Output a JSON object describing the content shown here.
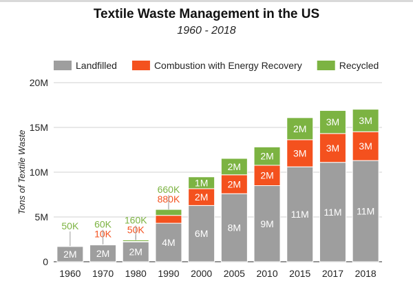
{
  "chart_data": {
    "type": "bar",
    "stacked": true,
    "title": "Textile Waste Management in the US",
    "subtitle": "1960 - 2018",
    "xlabel": "",
    "ylabel": "Tons of Textile Waste",
    "ylim": [
      0,
      20000000
    ],
    "yticks": [
      {
        "value": 0,
        "label": "0"
      },
      {
        "value": 5000000,
        "label": "5M"
      },
      {
        "value": 10000000,
        "label": "10M"
      },
      {
        "value": 15000000,
        "label": "15M"
      },
      {
        "value": 20000000,
        "label": "20M"
      }
    ],
    "grid": true,
    "legend_position": "top",
    "categories": [
      "1960",
      "1970",
      "1980",
      "1990",
      "2000",
      "2005",
      "2010",
      "2015",
      "2017",
      "2018"
    ],
    "series": [
      {
        "name": "Landfilled",
        "color": "#9e9e9e",
        "values": [
          1710000,
          1880000,
          2220000,
          4300000,
          6280000,
          7600000,
          8500000,
          10600000,
          11100000,
          11300000
        ],
        "labels": [
          "2M",
          "2M",
          "2M",
          "4M",
          "6M",
          "8M",
          "9M",
          "11M",
          "11M",
          "11M"
        ]
      },
      {
        "name": "Combustion with Energy Recovery",
        "color": "#f4511e",
        "values": [
          0,
          10000,
          50000,
          880000,
          1880000,
          2110000,
          2270000,
          3030000,
          3220000,
          3220000
        ],
        "labels": [
          "",
          "10K",
          "50K",
          "880K",
          "2M",
          "2M",
          "2M",
          "3M",
          "3M",
          "3M"
        ]
      },
      {
        "name": "Recycled",
        "color": "#7cb342",
        "values": [
          50000,
          60000,
          160000,
          660000,
          1320000,
          1830000,
          2050000,
          2460000,
          2570000,
          2510000
        ],
        "labels": [
          "50K",
          "60K",
          "160K",
          "660K",
          "1M",
          "2M",
          "2M",
          "2M",
          "3M",
          "3M"
        ]
      }
    ]
  }
}
